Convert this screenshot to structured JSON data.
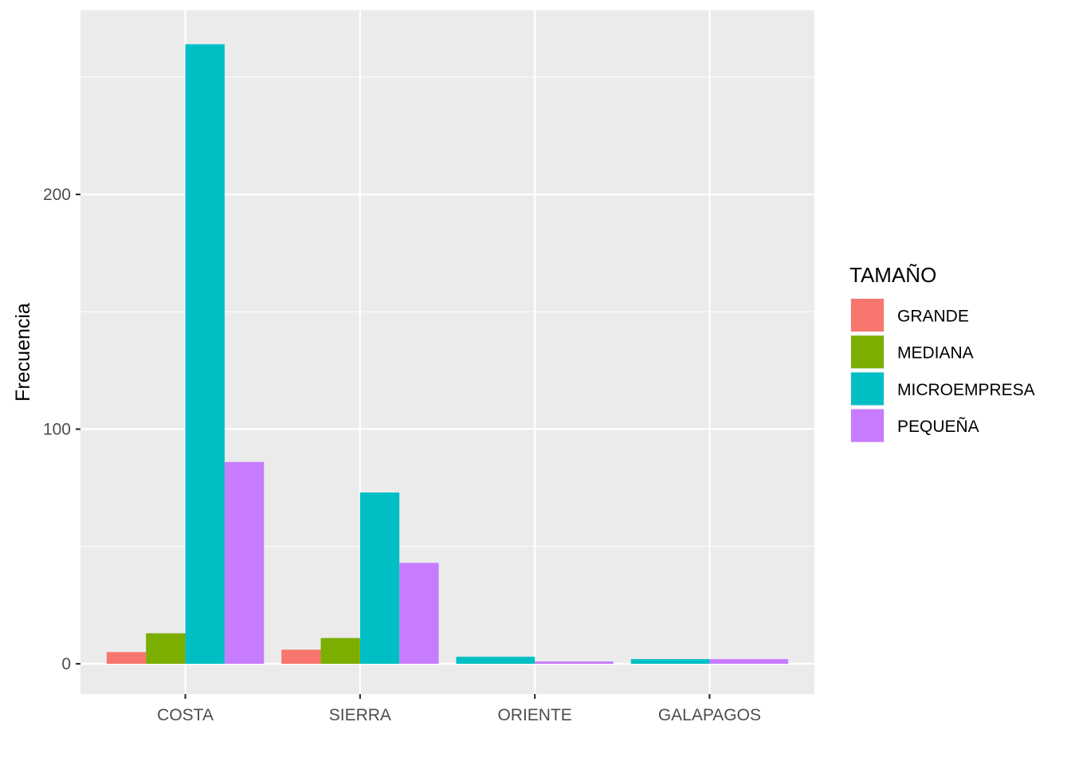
{
  "chart_data": {
    "type": "bar",
    "ylabel": "Frecuencia",
    "xlabel": "",
    "categories": [
      "COSTA",
      "SIERRA",
      "ORIENTE",
      "GALAPAGOS"
    ],
    "yticks": [
      0,
      100,
      200
    ],
    "ylim": [
      -13,
      278
    ],
    "grid": true,
    "legend": {
      "title": "TAMAÑO",
      "position": "right"
    },
    "series": [
      {
        "name": "GRANDE",
        "color": "#F8766D",
        "values": [
          5,
          6,
          0,
          0
        ]
      },
      {
        "name": "MEDIANA",
        "color": "#7CAE00",
        "values": [
          13,
          11,
          0,
          0
        ]
      },
      {
        "name": "MICROEMPRESA",
        "color": "#00BFC4",
        "values": [
          264,
          73,
          3,
          2
        ]
      },
      {
        "name": "PEQUEÑA",
        "color": "#C77CFF",
        "values": [
          86,
          43,
          1,
          2
        ]
      }
    ]
  }
}
